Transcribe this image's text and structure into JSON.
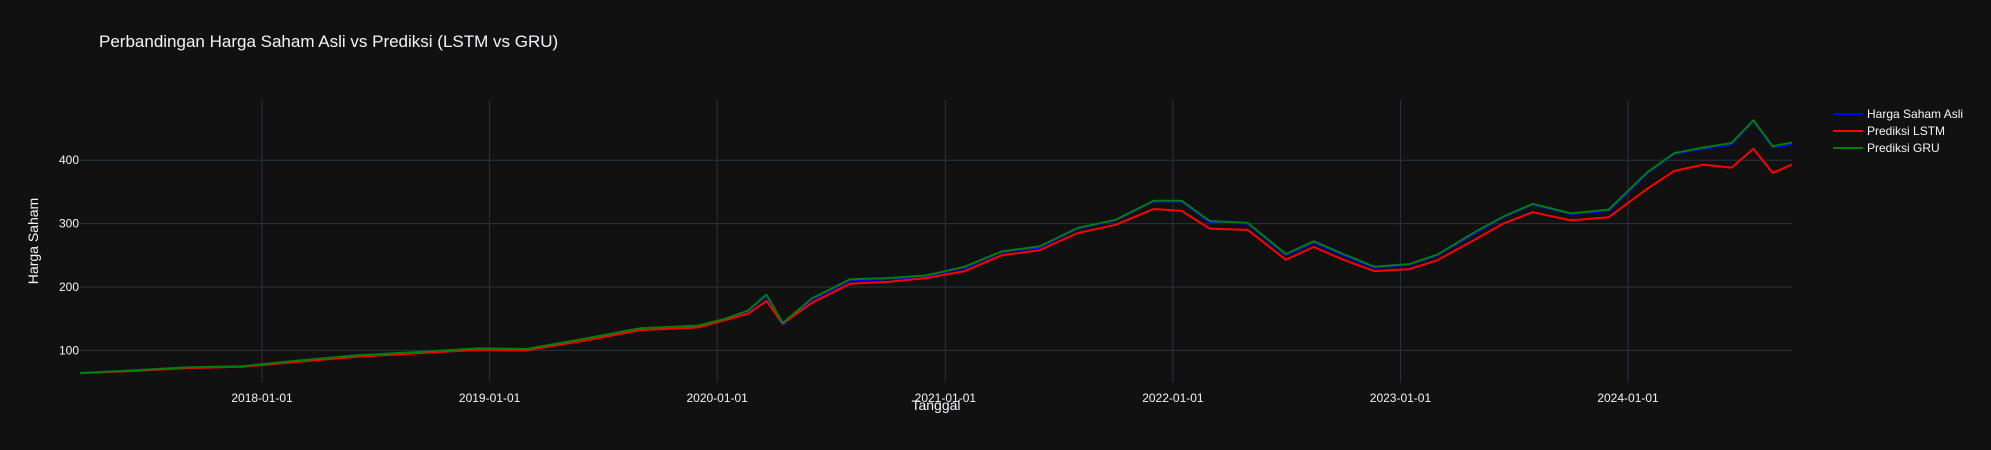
{
  "chart_data": {
    "type": "line",
    "title": "Perbandingan Harga Saham Asli vs Prediksi (LSTM vs GRU)",
    "xlabel": "Tanggal",
    "ylabel": "Harga Saham",
    "x_ticks": [
      "2018-01-01",
      "2019-01-01",
      "2020-01-01",
      "2021-01-01",
      "2022-01-01",
      "2023-01-01",
      "2024-01-01"
    ],
    "y_ticks": [
      100,
      200,
      300,
      400
    ],
    "xlim": [
      "2017-03-15",
      "2024-09-20"
    ],
    "ylim": [
      50,
      495
    ],
    "grid": true,
    "legend_position": "top-right",
    "x": [
      "2017-03-15",
      "2017-06-01",
      "2017-09-01",
      "2017-12-01",
      "2018-03-01",
      "2018-06-01",
      "2018-09-01",
      "2018-12-15",
      "2019-03-01",
      "2019-06-01",
      "2019-09-01",
      "2019-12-01",
      "2020-01-15",
      "2020-02-20",
      "2020-03-20",
      "2020-04-15",
      "2020-06-01",
      "2020-08-01",
      "2020-10-01",
      "2020-12-01",
      "2021-02-01",
      "2021-04-01",
      "2021-06-01",
      "2021-08-01",
      "2021-10-01",
      "2021-12-01",
      "2022-01-15",
      "2022-03-01",
      "2022-05-01",
      "2022-07-01",
      "2022-08-15",
      "2022-10-01",
      "2022-11-20",
      "2023-01-15",
      "2023-03-01",
      "2023-05-01",
      "2023-06-15",
      "2023-08-01",
      "2023-10-01",
      "2023-12-01",
      "2024-02-01",
      "2024-03-15",
      "2024-05-01",
      "2024-06-15",
      "2024-07-20",
      "2024-08-20",
      "2024-09-20"
    ],
    "series": [
      {
        "name": "Harga Saham Asli",
        "color": "#0000ff",
        "values": [
          64,
          68,
          73,
          75,
          84,
          92,
          97,
          103,
          102,
          118,
          135,
          138,
          150,
          162,
          186,
          140,
          180,
          210,
          212,
          217,
          230,
          255,
          262,
          292,
          305,
          335,
          335,
          302,
          300,
          250,
          270,
          250,
          230,
          235,
          250,
          285,
          310,
          330,
          315,
          320,
          380,
          410,
          418,
          425,
          462,
          420,
          425
        ]
      },
      {
        "name": "Prediksi LSTM",
        "color": "#ff0000",
        "values": [
          64,
          67,
          72,
          74,
          82,
          90,
          95,
          101,
          100,
          115,
          132,
          136,
          148,
          158,
          178,
          142,
          175,
          205,
          208,
          214,
          225,
          250,
          258,
          285,
          298,
          323,
          320,
          292,
          290,
          243,
          263,
          243,
          225,
          228,
          242,
          275,
          300,
          318,
          305,
          310,
          355,
          383,
          393,
          388,
          418,
          380,
          393
        ]
      },
      {
        "name": "Prediksi GRU",
        "color": "#008000",
        "values": [
          64,
          68,
          73,
          75,
          84,
          92,
          97,
          103,
          102,
          118,
          135,
          139,
          150,
          163,
          188,
          143,
          182,
          212,
          214,
          218,
          232,
          256,
          264,
          293,
          306,
          336,
          336,
          304,
          301,
          252,
          272,
          252,
          232,
          236,
          251,
          287,
          311,
          331,
          316,
          322,
          381,
          411,
          420,
          427,
          463,
          422,
          428
        ]
      }
    ]
  }
}
